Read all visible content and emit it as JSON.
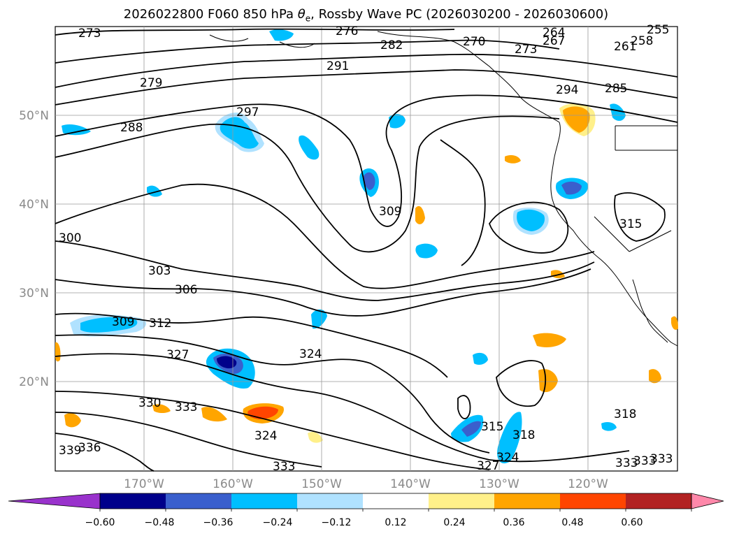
{
  "title": {
    "prefix": "2026022800 F060 850 hPa ",
    "symbol": "θ",
    "subscript": "e",
    "suffix": ", Rossby Wave PC (2026030200 - 2026030600)"
  },
  "lon_labels": [
    "170°W",
    "160°W",
    "150°W",
    "140°W",
    "130°W",
    "120°W"
  ],
  "lat_labels": [
    "50°N",
    "40°N",
    "30°N",
    "20°N"
  ],
  "colorbar": {
    "tick_labels": [
      "−0.60",
      "−0.48",
      "−0.36",
      "−0.24",
      "−0.12",
      "0.12",
      "0.24",
      "0.36",
      "0.48",
      "0.60"
    ],
    "colors": [
      "#9932cc",
      "#00008b",
      "#3a5fcd",
      "#00bfff",
      "#b0e2ff",
      "#ffffff",
      "#fff08a",
      "#ffa500",
      "#ff4500",
      "#b22222",
      "#ff88aa"
    ]
  },
  "contour_labels": [
    "273",
    "276",
    "282",
    "270",
    "264",
    "267",
    "255",
    "258",
    "261",
    "273",
    "291",
    "279",
    "294",
    "285",
    "288",
    "297",
    "309",
    "315",
    "300",
    "303",
    "306",
    "309",
    "312",
    "327",
    "324",
    "330",
    "333",
    "324",
    "333",
    "336",
    "339",
    "315",
    "318",
    "318",
    "327",
    "324",
    "333",
    "333",
    "333"
  ]
}
